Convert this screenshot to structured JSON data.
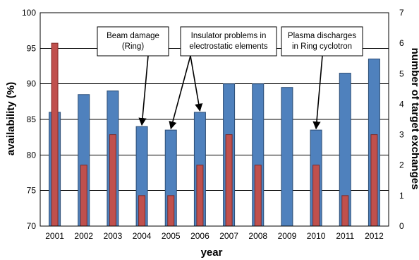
{
  "chart_data": {
    "type": "bar",
    "title": "",
    "xlabel": "year",
    "ylabel": "availability (%)",
    "y2label": "number of target exchanges",
    "categories": [
      "2001",
      "2002",
      "2003",
      "2004",
      "2005",
      "2006",
      "2007",
      "2008",
      "2009",
      "2010",
      "2011",
      "2012"
    ],
    "ylim": [
      70,
      100
    ],
    "y2lim": [
      0,
      7
    ],
    "yticks": [
      "70",
      "75",
      "80",
      "85",
      "90",
      "95",
      "100"
    ],
    "y2ticks": [
      "0",
      "1",
      "2",
      "3",
      "4",
      "5",
      "6",
      "7"
    ],
    "grid": "horizontal",
    "series": [
      {
        "axis": "left",
        "color": "#4F81BD",
        "values": [
          86,
          88.5,
          89,
          84,
          83.5,
          86,
          90,
          90,
          89.5,
          83.5,
          91.5,
          93.5
        ]
      },
      {
        "axis": "right",
        "color": "#C0504D",
        "values": [
          6,
          2,
          3,
          1,
          1,
          2,
          3,
          2,
          0,
          2,
          1,
          3
        ]
      }
    ],
    "annotations": [
      {
        "lines": [
          "Beam damage",
          "(Ring)"
        ],
        "targets": [
          "2004"
        ]
      },
      {
        "lines": [
          "Insulator problems in",
          "electrostatic elements"
        ],
        "targets": [
          "2005",
          "2006"
        ]
      },
      {
        "lines": [
          "Plasma discharges",
          "in Ring cyclotron"
        ],
        "targets": [
          "2010"
        ]
      }
    ]
  }
}
